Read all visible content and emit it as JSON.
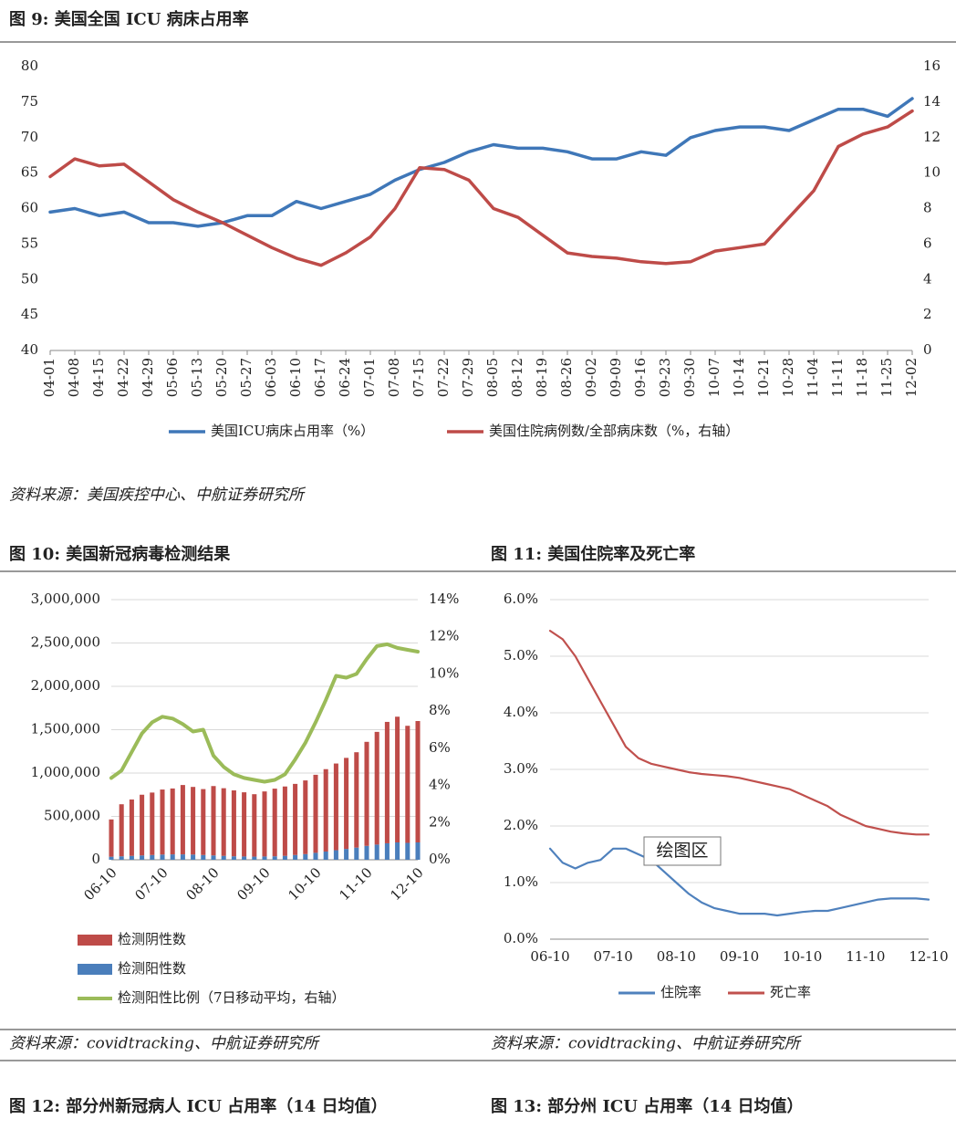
{
  "chart_data": [
    {
      "type": "line",
      "title": "图 9: 美国全国 ICU 病床占用率",
      "source": "资料来源：美国疾控中心、中航证券研究所",
      "categories": [
        "04-01",
        "04-08",
        "04-15",
        "04-22",
        "04-29",
        "05-06",
        "05-13",
        "05-20",
        "05-27",
        "06-03",
        "06-10",
        "06-17",
        "06-24",
        "07-01",
        "07-08",
        "07-15",
        "07-22",
        "07-29",
        "08-05",
        "08-12",
        "08-19",
        "08-26",
        "09-02",
        "09-09",
        "09-16",
        "09-23",
        "09-30",
        "10-07",
        "10-14",
        "10-21",
        "10-28",
        "11-04",
        "11-11",
        "11-18",
        "11-25",
        "12-02"
      ],
      "series": [
        {
          "name": "美国ICU病床占用率（%）",
          "color": "#3f77b8",
          "values": [
            59.5,
            60,
            59,
            59.5,
            58,
            58,
            57.5,
            58,
            59,
            59,
            61,
            60,
            61,
            62,
            64,
            65.5,
            66.5,
            68,
            69,
            68.5,
            68.5,
            68,
            67,
            67,
            68,
            67.5,
            70,
            71,
            71.5,
            71.5,
            71,
            72.5,
            74,
            74,
            73,
            75.5
          ]
        },
        {
          "name": "美国住院病例数/全部病床数（%，右轴）",
          "color": "#be4b48",
          "axis": "y2",
          "values": [
            9.8,
            10.8,
            10.4,
            10.5,
            9.5,
            8.5,
            7.8,
            7.2,
            6.5,
            5.8,
            5.2,
            4.8,
            5.5,
            6.4,
            8,
            10.3,
            10.2,
            9.6,
            8,
            7.5,
            6.5,
            5.5,
            5.3,
            5.2,
            5,
            4.9,
            5,
            5.6,
            5.8,
            6,
            7.5,
            9,
            11.5,
            12.2,
            12.6,
            13.5
          ]
        }
      ],
      "ylim": [
        40,
        80
      ],
      "yticks": [
        40,
        45,
        50,
        55,
        60,
        65,
        70,
        75,
        80
      ],
      "y2lim": [
        0,
        16
      ],
      "y2ticks": [
        0,
        2,
        4,
        6,
        8,
        10,
        12,
        14,
        16
      ],
      "grid": false
    },
    {
      "type": "combo",
      "title": "图 10: 美国新冠病毒检测结果",
      "source": "资料来源：covidtracking、中航证券研究所",
      "categories": [
        "06-10",
        null,
        null,
        null,
        null,
        "07-10",
        null,
        null,
        null,
        null,
        "08-10",
        null,
        null,
        null,
        null,
        "09-10",
        null,
        null,
        null,
        null,
        "10-10",
        null,
        null,
        null,
        null,
        "11-10",
        null,
        null,
        null,
        null,
        "12-10"
      ],
      "stacked": true,
      "series": [
        {
          "name": "检测阴性数",
          "color": "#be4b48",
          "type": "bar",
          "values": [
            430000,
            600000,
            650000,
            700000,
            720000,
            750000,
            760000,
            800000,
            780000,
            760000,
            800000,
            780000,
            760000,
            740000,
            720000,
            750000,
            780000,
            800000,
            820000,
            850000,
            900000,
            950000,
            1000000,
            1050000,
            1100000,
            1200000,
            1300000,
            1400000,
            1450000,
            1350000,
            1400000
          ]
        },
        {
          "name": "检测阳性数",
          "color": "#4a7ebb",
          "type": "bar",
          "values": [
            35000,
            40000,
            45000,
            50000,
            55000,
            60000,
            62000,
            62000,
            60000,
            55000,
            50000,
            45000,
            40000,
            38000,
            36000,
            38000,
            40000,
            45000,
            55000,
            65000,
            80000,
            95000,
            110000,
            125000,
            140000,
            160000,
            175000,
            190000,
            200000,
            195000,
            200000
          ]
        },
        {
          "name": "检测阳性比例（7日移动平均，右轴）",
          "color": "#9bbb59",
          "type": "line",
          "axis": "y2",
          "values": [
            4.4,
            4.8,
            5.8,
            6.8,
            7.4,
            7.7,
            7.6,
            7.3,
            6.9,
            7.0,
            5.6,
            5.0,
            4.6,
            4.4,
            4.3,
            4.2,
            4.3,
            4.6,
            5.4,
            6.3,
            7.4,
            8.6,
            9.9,
            9.8,
            10.0,
            10.8,
            11.5,
            11.6,
            11.4,
            11.3,
            11.2
          ]
        }
      ],
      "ylim": [
        0,
        3000000
      ],
      "yticks": [
        0,
        {
          "value": 500000,
          "label": "500,000"
        },
        {
          "value": 1000000,
          "label": "1,000,000"
        },
        {
          "value": 1500000,
          "label": "1,500,000"
        },
        {
          "value": 2000000,
          "label": "2,000,000"
        },
        {
          "value": 2500000,
          "label": "2,500,000"
        },
        {
          "value": 3000000,
          "label": "3,000,000"
        }
      ],
      "y2lim": [
        0,
        14
      ],
      "y2ticks": [
        {
          "value": 0,
          "label": "0%"
        },
        {
          "value": 2,
          "label": "2%"
        },
        {
          "value": 4,
          "label": "4%"
        },
        {
          "value": 6,
          "label": "6%"
        },
        {
          "value": 8,
          "label": "8%"
        },
        {
          "value": 10,
          "label": "10%"
        },
        {
          "value": 12,
          "label": "12%"
        },
        {
          "value": 14,
          "label": "14%"
        }
      ],
      "grid": true
    },
    {
      "type": "line",
      "title": "图 11: 美国住院率及死亡率",
      "source": "资料来源：covidtracking、中航证券研究所",
      "annotation": "绘图区",
      "categories": [
        "06-10",
        null,
        null,
        null,
        null,
        "07-10",
        null,
        null,
        null,
        null,
        "08-10",
        null,
        null,
        null,
        null,
        "09-10",
        null,
        null,
        null,
        null,
        "10-10",
        null,
        null,
        null,
        null,
        "11-10",
        null,
        null,
        null,
        null,
        "12-10"
      ],
      "series": [
        {
          "name": "住院率",
          "color": "#4f81bd",
          "values": [
            1.6,
            1.35,
            1.25,
            1.35,
            1.4,
            1.6,
            1.6,
            1.5,
            1.4,
            1.2,
            1.0,
            0.8,
            0.65,
            0.55,
            0.5,
            0.45,
            0.45,
            0.45,
            0.42,
            0.45,
            0.48,
            0.5,
            0.5,
            0.55,
            0.6,
            0.65,
            0.7,
            0.72,
            0.72,
            0.72,
            0.7
          ]
        },
        {
          "name": "死亡率",
          "color": "#c0504d",
          "values": [
            5.45,
            5.3,
            5.0,
            4.6,
            4.2,
            3.8,
            3.4,
            3.2,
            3.1,
            3.05,
            3.0,
            2.95,
            2.92,
            2.9,
            2.88,
            2.85,
            2.8,
            2.75,
            2.7,
            2.65,
            2.55,
            2.45,
            2.35,
            2.2,
            2.1,
            2.0,
            1.95,
            1.9,
            1.87,
            1.85,
            1.85
          ]
        }
      ],
      "ylim": [
        0,
        6
      ],
      "yticks": [
        {
          "value": 0,
          "label": "0.0%"
        },
        {
          "value": 1,
          "label": "1.0%"
        },
        {
          "value": 2,
          "label": "2.0%"
        },
        {
          "value": 3,
          "label": "3.0%"
        },
        {
          "value": 4,
          "label": "4.0%"
        },
        {
          "value": 5,
          "label": "5.0%"
        },
        {
          "value": 6,
          "label": "6.0%"
        }
      ],
      "grid": true
    }
  ],
  "next_figures": [
    "图 12: 部分州新冠病人 ICU 占用率（14 日均值）",
    "图 13: 部分州 ICU 占用率（14 日均值）"
  ]
}
